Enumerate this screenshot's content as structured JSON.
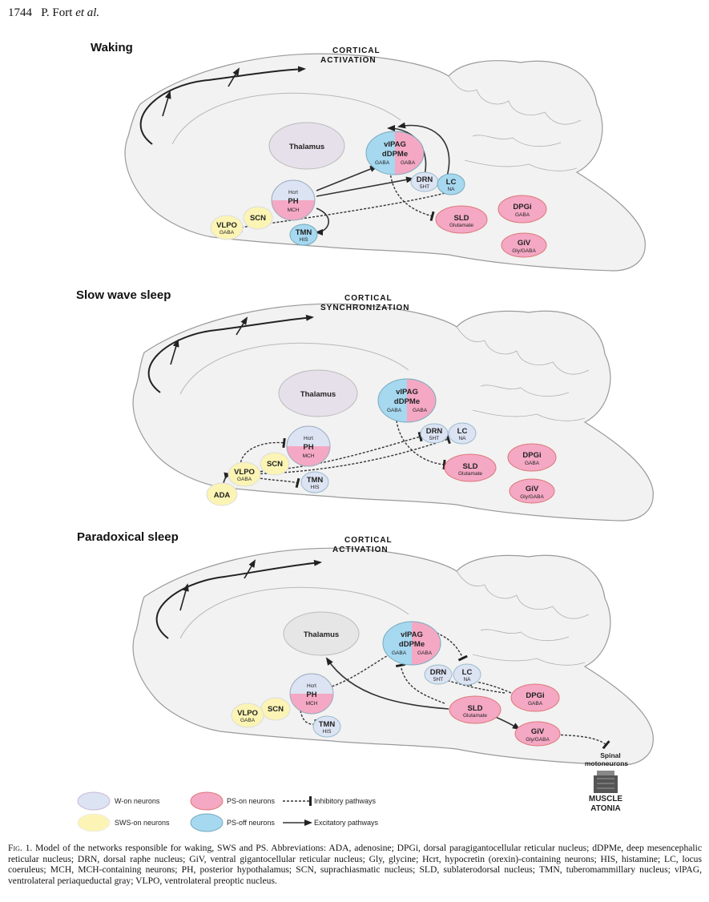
{
  "header": {
    "page_number": "1744",
    "authors": "P. Fort",
    "et_al": "et al."
  },
  "colors": {
    "w_on": "#dce3f3",
    "ps_on": "#f4a8c4",
    "sws_on": "#fbf4b4",
    "ps_off": "#a6d8f0",
    "thalamus": "#e6e0ea",
    "brain": "#f2f2f2",
    "outline": "#9a9a9a"
  },
  "panels": [
    {
      "title": "Waking",
      "cortex_label_1": "CORTICAL",
      "cortex_label_2": "ACTIVATION",
      "thalamus": "Thalamus"
    },
    {
      "title": "Slow wave sleep",
      "cortex_label_1": "CORTICAL",
      "cortex_label_2": "SYNCHRONIZATION",
      "thalamus": "Thalamus"
    },
    {
      "title": "Paradoxical sleep",
      "cortex_label_1": "CORTICAL",
      "cortex_label_2": "ACTIVATION",
      "thalamus": "Thalamus"
    }
  ],
  "nuclei": {
    "vlpag": "vlPAG",
    "ddpme": "dDPMe",
    "gaba": "GABA",
    "drn": "DRN",
    "sht": "5HT",
    "lc": "LC",
    "na": "NA",
    "sld": "SLD",
    "glutamate": "Glutamate",
    "dpgi": "DPGi",
    "giv": "GiV",
    "gly_gaba": "Gly/GABA",
    "hcrt": "Hcrt",
    "ph": "PH",
    "mch": "MCH",
    "vlpo": "VLPO",
    "scn": "SCN",
    "tmn": "TMN",
    "his": "HIS",
    "ada": "ADA"
  },
  "atonia": {
    "spinal": "Spinal",
    "motoneurons": "motoneurons",
    "muscle": "MUSCLE",
    "atonia": "ATONIA"
  },
  "legend": {
    "w_on": "W-on neurons",
    "sws_on": "SWS-on neurons",
    "ps_on": "PS-on neurons",
    "ps_off": "PS-off neurons",
    "inhibitory": "Inhibitory pathways",
    "excitatory": "Excitatory pathways"
  },
  "caption": {
    "label": "Fig. 1.",
    "text": "Model of the networks responsible for waking, SWS and PS. Abbreviations: ADA, adenosine; DPGi, dorsal paragigantocellular reticular nucleus; dDPMe, deep mesencephalic reticular nucleus; DRN, dorsal raphe nucleus; GiV, ventral gigantocellular reticular nucleus; Gly, glycine; Hcrt, hypocretin (orexin)-containing neurons; HIS, histamine; LC, locus coeruleus; MCH, MCH-containing neurons; PH, posterior hypothalamus; SCN, suprachiasmatic nucleus; SLD, sublaterodorsal nucleus; TMN, tuberomammillary nucleus; vlPAG, ventrolateral periaqueductal gray; VLPO, ventrolateral preoptic nucleus."
  }
}
